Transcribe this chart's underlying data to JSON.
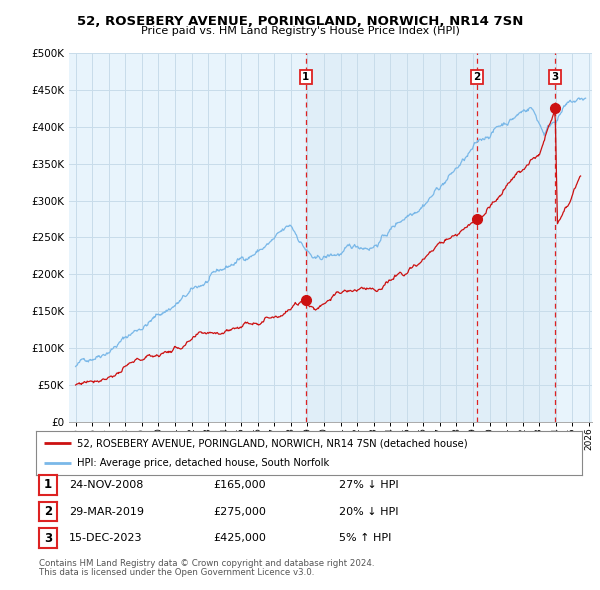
{
  "title": "52, ROSEBERY AVENUE, PORINGLAND, NORWICH, NR14 7SN",
  "subtitle": "Price paid vs. HM Land Registry's House Price Index (HPI)",
  "legend_label_red": "52, ROSEBERY AVENUE, PORINGLAND, NORWICH, NR14 7SN (detached house)",
  "legend_label_blue": "HPI: Average price, detached house, South Norfolk",
  "footer_line1": "Contains HM Land Registry data © Crown copyright and database right 2024.",
  "footer_line2": "This data is licensed under the Open Government Licence v3.0.",
  "transactions": [
    {
      "num": 1,
      "date": "24-NOV-2008",
      "price": "£165,000",
      "pct": "27% ↓ HPI",
      "x_year": 2008.9
    },
    {
      "num": 2,
      "date": "29-MAR-2019",
      "price": "£275,000",
      "pct": "20% ↓ HPI",
      "x_year": 2019.25
    },
    {
      "num": 3,
      "date": "15-DEC-2023",
      "price": "£425,000",
      "pct": "5% ↑ HPI",
      "x_year": 2023.96
    }
  ],
  "hpi_color": "#7ab8e8",
  "price_color": "#cc1111",
  "vline_color": "#dd2222",
  "background_color": "#ffffff",
  "plot_bg_color": "#e8f4fc",
  "grid_color": "#c8dcea",
  "ylim": [
    0,
    500000
  ],
  "xlim_start": 1994.6,
  "xlim_end": 2026.2,
  "shade_color": "#daeaf5"
}
